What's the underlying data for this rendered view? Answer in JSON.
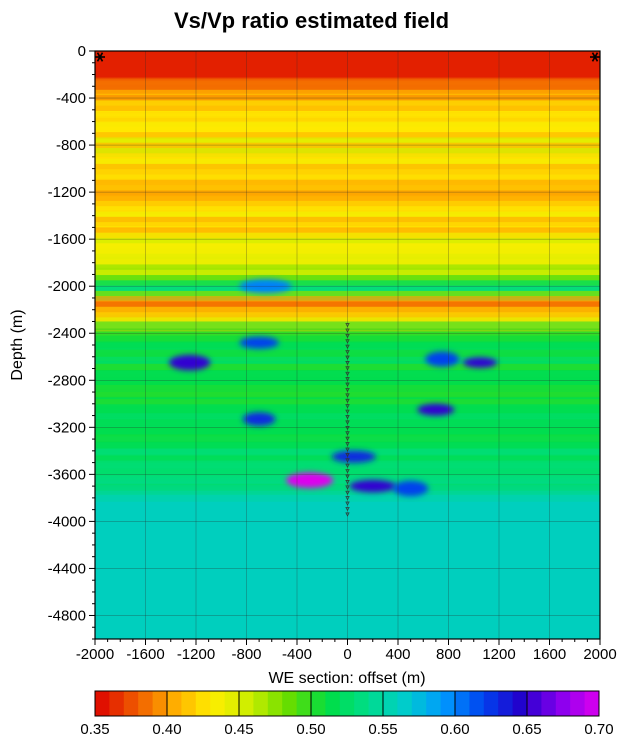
{
  "chart_data": {
    "type": "heatmap",
    "title": "Vs/Vp ratio estimated field",
    "xlabel": "WE section: offset (m)",
    "ylabel": "Depth (m)",
    "xlim": [
      -2000,
      2000
    ],
    "ylim": [
      -5000,
      0
    ],
    "x_ticks": [
      -2000,
      -1600,
      -1200,
      -800,
      -400,
      0,
      400,
      800,
      1200,
      1600,
      2000
    ],
    "y_ticks": [
      0,
      -400,
      -800,
      -1200,
      -1600,
      -2000,
      -2400,
      -2800,
      -3200,
      -3600,
      -4000,
      -4400,
      -4800
    ],
    "grid": true,
    "colorbar": {
      "min": 0.35,
      "max": 0.7,
      "ticks": [
        0.35,
        0.4,
        0.45,
        0.5,
        0.55,
        0.6,
        0.65,
        0.7
      ],
      "tick_labels": [
        "0.35",
        "0.40",
        "0.45",
        "0.50",
        "0.55",
        "0.60",
        "0.65",
        "0.70"
      ],
      "placement": "bottom",
      "palette": [
        "#dd0000",
        "#ee5500",
        "#ffaa00",
        "#ffee00",
        "#ccee00",
        "#66dd00",
        "#00dd44",
        "#00dd88",
        "#00cccc",
        "#0099ff",
        "#0044ee",
        "#2200cc",
        "#8800ee",
        "#dd00ee"
      ]
    },
    "depth_profile": {
      "depth": [
        0,
        -220,
        -260,
        -400,
        -800,
        -1200,
        -1600,
        -1900,
        -2000,
        -2100,
        -2200,
        -2300,
        -2500,
        -2800,
        -3200,
        -3600,
        -3800,
        -4400,
        -5000
      ],
      "vs_vp": [
        0.36,
        0.36,
        0.4,
        0.42,
        0.43,
        0.42,
        0.43,
        0.47,
        0.53,
        0.39,
        0.41,
        0.5,
        0.52,
        0.51,
        0.52,
        0.53,
        0.56,
        0.56,
        0.56
      ]
    },
    "anomalies": [
      {
        "x": -1250,
        "depth": -2650,
        "value": 0.65
      },
      {
        "x": -650,
        "depth": -2000,
        "value": 0.6
      },
      {
        "x": -700,
        "depth": -2480,
        "value": 0.62
      },
      {
        "x": 750,
        "depth": -2620,
        "value": 0.62
      },
      {
        "x": 1050,
        "depth": -2650,
        "value": 0.65
      },
      {
        "x": 700,
        "depth": -3050,
        "value": 0.65
      },
      {
        "x": -700,
        "depth": -3130,
        "value": 0.63
      },
      {
        "x": 50,
        "depth": -3450,
        "value": 0.63
      },
      {
        "x": -300,
        "depth": -3650,
        "value": 0.7
      },
      {
        "x": 200,
        "depth": -3700,
        "value": 0.65
      },
      {
        "x": 500,
        "depth": -3720,
        "value": 0.62
      }
    ],
    "receivers": {
      "x": 0,
      "depth_top": -2330,
      "depth_bottom": -3940,
      "count": 36
    },
    "sources": [
      {
        "x": -2000,
        "depth": 0
      },
      {
        "x": 2000,
        "depth": 0
      }
    ]
  }
}
